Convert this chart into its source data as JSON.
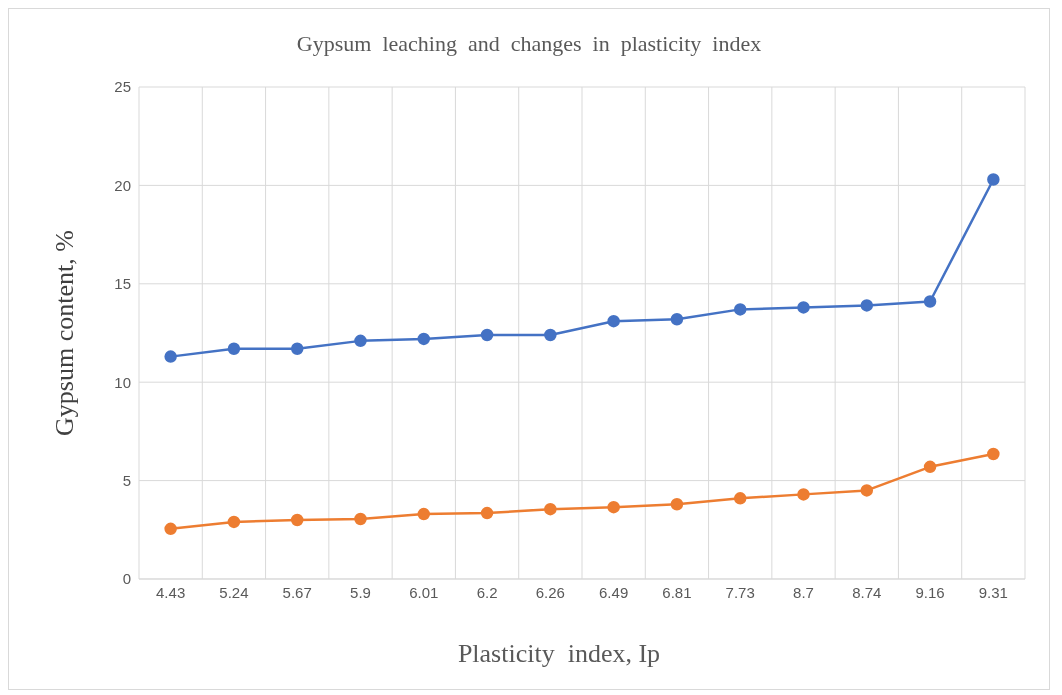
{
  "chart_data": {
    "type": "line",
    "title": "Gypsum  leaching  and  changes  in  plasticity  index",
    "xlabel": "Plasticity  index, Ip",
    "ylabel": "Gypsum  content,  %",
    "categories": [
      "4.43",
      "5.24",
      "5.67",
      "5.9",
      "6.01",
      "6.2",
      "6.26",
      "6.49",
      "6.81",
      "7.73",
      "8.7",
      "8.74",
      "9.16",
      "9.31"
    ],
    "series": [
      {
        "color": "#4472c4",
        "values": [
          11.3,
          11.7,
          11.7,
          12.1,
          12.2,
          12.4,
          12.4,
          13.1,
          13.2,
          13.7,
          13.8,
          13.9,
          14.1,
          20.3
        ]
      },
      {
        "color": "#ed7d31",
        "values": [
          2.55,
          2.9,
          3.0,
          3.05,
          3.3,
          3.35,
          3.55,
          3.65,
          3.8,
          4.1,
          4.3,
          4.5,
          5.7,
          6.35
        ]
      }
    ],
    "ylim": [
      0,
      25
    ],
    "yticks": [
      0,
      5,
      10,
      15,
      20,
      25
    ],
    "grid": true,
    "marker": "circle",
    "line_style": "solid"
  }
}
